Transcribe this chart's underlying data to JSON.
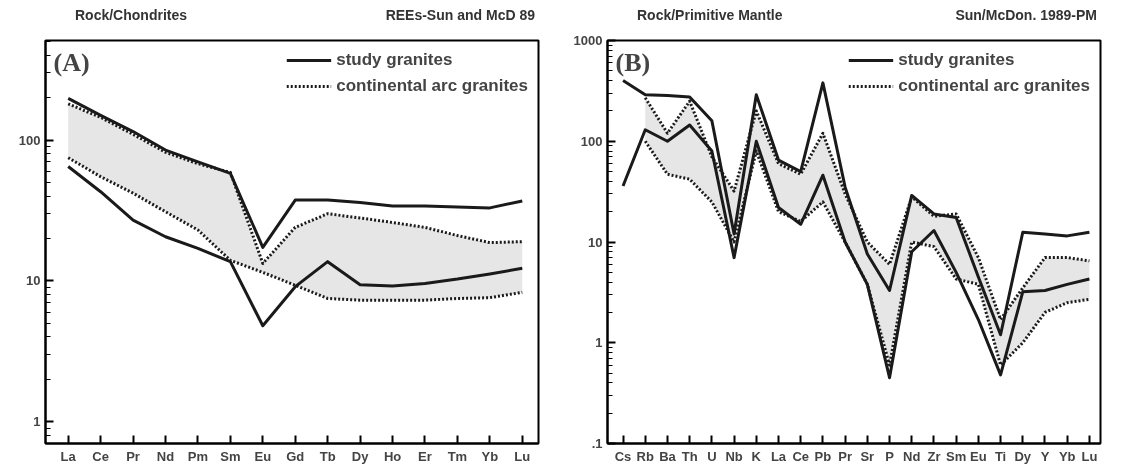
{
  "chart_data": [
    {
      "type": "line",
      "title": "Rock/Chondrites",
      "subtitle": "REEs-Sun and McD 89",
      "annotations": [
        "(A)"
      ],
      "categories": [
        "La",
        "Ce",
        "Pr",
        "Nd",
        "Pm",
        "Sm",
        "Eu",
        "Gd",
        "Tb",
        "Dy",
        "Ho",
        "Er",
        "Tm",
        "Yb",
        "Lu"
      ],
      "log": true,
      "ylim": [
        0.7,
        510
      ],
      "yticks": [
        1,
        10,
        100
      ],
      "grid": false,
      "legend": "top right",
      "series": [
        {
          "name": "study granites",
          "color": "#1a1a1a",
          "line_style": "solid",
          "values": [
            198,
            150,
            115,
            85,
            70,
            58,
            17.3,
            37.5,
            37.5,
            36,
            34,
            34,
            33.5,
            33,
            37
          ]
        },
        {
          "color": "#1a1a1a",
          "line_style": "solid",
          "values": [
            65,
            43,
            27,
            20.6,
            17,
            13.7,
            4.8,
            9.1,
            13.7,
            9.4,
            9.2,
            9.6,
            10.3,
            11.2,
            12.3
          ]
        },
        {
          "name": "continental arc granites",
          "color": "#1a1a1a",
          "line_style": "dotted",
          "values": [
            181,
            145,
            110,
            82,
            68,
            59,
            13.3,
            24,
            30,
            28,
            26,
            24,
            21,
            18.7,
            19
          ],
          "lower": [
            75,
            55,
            42,
            31,
            23,
            14,
            11.5,
            9.3,
            7.5,
            7.3,
            7.3,
            7.3,
            7.5,
            7.6,
            8.3
          ],
          "upper": [
            181,
            145,
            110,
            82,
            68,
            59,
            13.3,
            24,
            30,
            28,
            26,
            24,
            21,
            18.7,
            19
          ]
        },
        {
          "color": "#1a1a1a",
          "line_style": "dotted",
          "values": [
            75,
            55,
            42,
            31,
            23,
            14,
            11.5,
            9.3,
            7.5,
            7.3,
            7.3,
            7.3,
            7.5,
            7.6,
            8.3
          ]
        }
      ]
    },
    {
      "type": "line",
      "title": "Rock/Primitive Mantle",
      "subtitle": "Sun/McDon. 1989-PM",
      "annotations": [
        "(B)"
      ],
      "categories": [
        "Cs",
        "Rb",
        "Ba",
        "Th",
        "U",
        "Nb",
        "K",
        "La",
        "Ce",
        "Pb",
        "Pr",
        "Sr",
        "P",
        "Nd",
        "Zr",
        "Sm",
        "Eu",
        "Ti",
        "Dy",
        "Y",
        "Yb",
        "Lu"
      ],
      "log": true,
      "ylim": [
        0.1,
        1000
      ],
      "yticks": [
        {
          "value": 0.1,
          "label": ".1"
        },
        1,
        10,
        100,
        1000
      ],
      "grid": false,
      "legend": "top right",
      "series": [
        {
          "name": "study granites",
          "color": "#1a1a1a",
          "line_style": "solid",
          "values": [
            400,
            290,
            285,
            275,
            160,
            12,
            290,
            65,
            50,
            380,
            35,
            7.6,
            3.3,
            29,
            19,
            17.5,
            4.5,
            1.2,
            12.5,
            12,
            11.5,
            12.5
          ]
        },
        {
          "color": "#1a1a1a",
          "line_style": "solid",
          "values": [
            36,
            130,
            100,
            145,
            80,
            7,
            100,
            22,
            15,
            46,
            10,
            3.8,
            0.45,
            8,
            13,
            5,
            1.7,
            0.48,
            3.2,
            3.3,
            3.8,
            4.3
          ]
        },
        {
          "name": "continental arc granites",
          "color": "#1a1a1a",
          "line_style": "dotted",
          "values": [
            null,
            270,
            120,
            250,
            70,
            32,
            200,
            60,
            47,
            120,
            30,
            10,
            6,
            28,
            18,
            19,
            7,
            1.7,
            3.5,
            7,
            7,
            6.5
          ],
          "lower": [
            null,
            100,
            47,
            42,
            25,
            10,
            80,
            20,
            16,
            25,
            10,
            3.8,
            0.6,
            10,
            9,
            4.3,
            3.8,
            0.6,
            1.0,
            2,
            2.5,
            2.7
          ],
          "upper": [
            null,
            270,
            120,
            250,
            70,
            32,
            200,
            60,
            47,
            120,
            30,
            10,
            6,
            28,
            18,
            19,
            7,
            1.7,
            3.5,
            7,
            7,
            6.5
          ]
        },
        {
          "color": "#1a1a1a",
          "line_style": "dotted",
          "values": [
            null,
            100,
            47,
            42,
            25,
            10,
            80,
            20,
            16,
            25,
            10,
            3.8,
            0.6,
            10,
            9,
            4.3,
            3.8,
            0.6,
            1.0,
            2,
            2.5,
            2.7
          ]
        }
      ]
    }
  ]
}
